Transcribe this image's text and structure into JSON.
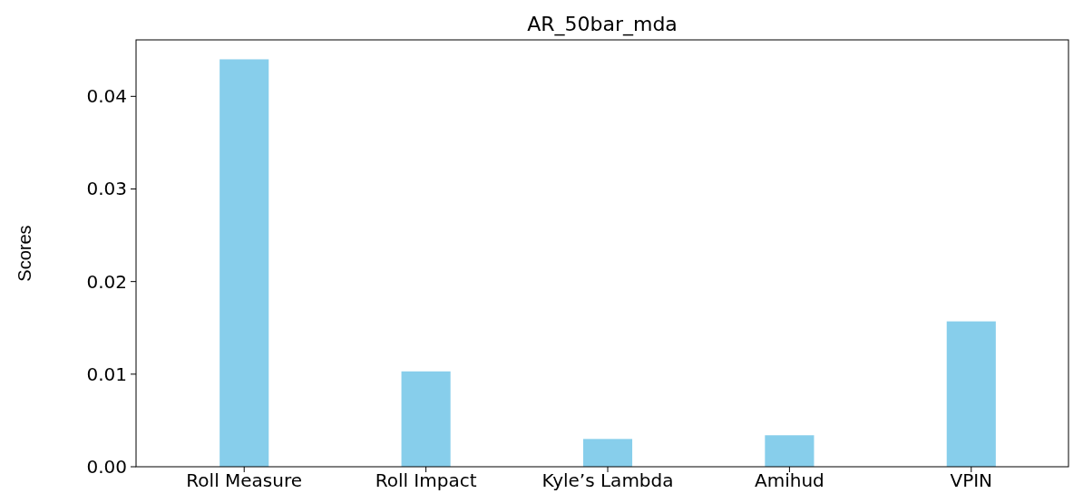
{
  "chart_data": {
    "type": "bar",
    "title": "AR_50bar_mda",
    "ylabel": "Scores",
    "categories": [
      "Roll Measure",
      "Roll Impact",
      "Kyle’s Lambda",
      "Amihud",
      "VPIN"
    ],
    "values": [
      0.044,
      0.0103,
      0.003,
      0.0034,
      0.0157
    ],
    "color": "#87ceeb",
    "ylim": [
      0,
      0.0461
    ],
    "yticks": [
      {
        "value": 0,
        "label": "0.00"
      },
      {
        "value": 0.01,
        "label": "0.01"
      },
      {
        "value": 0.02,
        "label": "0.02"
      },
      {
        "value": 0.03,
        "label": "0.03"
      },
      {
        "value": 0.04,
        "label": "0.04"
      }
    ],
    "grid": false
  }
}
